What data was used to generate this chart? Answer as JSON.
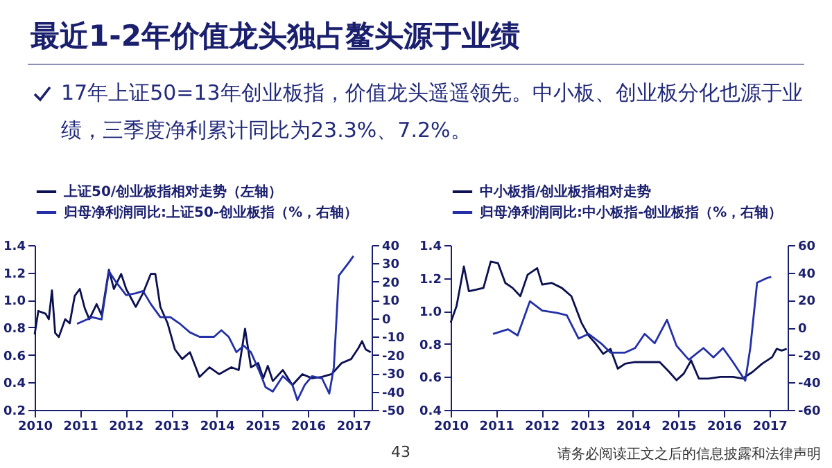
{
  "chart_data": [
    {
      "type": "other",
      "title": "最近1-2年价值龙头独占鳌头源于业绩",
      "subtitle": "17年上证50=13年创业板指，价值龙头遥遥领先。中小板、创业板分化也源于业绩，三季度净利累计同比为23.3%、7.2%。",
      "annotations": [
        "43",
        "请务必阅读正文之后的信息披露和法律声明"
      ]
    },
    {
      "type": "line",
      "legend": "top",
      "line_style": "solid",
      "xlim": [
        2010,
        2017.4
      ],
      "xticks": [
        2010,
        2011,
        2012,
        2013,
        2014,
        2015,
        2016,
        2017
      ],
      "ylim": [
        0.2,
        1.4
      ],
      "yticks": [
        0.2,
        0.4,
        0.6,
        0.8,
        {
          "value": 1,
          "label": "1.0"
        },
        1.2,
        1.4
      ],
      "y2lim": [
        -50,
        40
      ],
      "y2ticks": [
        -50,
        -40,
        -30,
        -20,
        -10,
        0,
        10,
        20,
        30,
        40
      ],
      "series": [
        {
          "name": "上证50/创业板指相对走势（左轴）",
          "color": "#0b1050",
          "x": [
            2010.0,
            2010.08,
            2010.24,
            2010.31,
            2010.38,
            2010.45,
            2010.53,
            2010.67,
            2010.77,
            2010.88,
            2010.99,
            2011.1,
            2011.2,
            2011.36,
            2011.47,
            2011.63,
            2011.74,
            2011.9,
            2012.01,
            2012.22,
            2012.38,
            2012.55,
            2012.65,
            2012.76,
            2012.92,
            2013.08,
            2013.24,
            2013.41,
            2013.62,
            2013.84,
            2014.05,
            2014.32,
            2014.48,
            2014.62,
            2014.75,
            2014.91,
            2015.02,
            2015.12,
            2015.23,
            2015.45,
            2015.66,
            2015.88,
            2016.09,
            2016.31,
            2016.52,
            2016.74,
            2016.95,
            2017.11,
            2017.19,
            2017.27,
            2017.38
          ],
          "values": [
            0.75,
            0.92,
            0.9,
            0.86,
            1.07,
            0.76,
            0.73,
            0.86,
            0.83,
            1.03,
            1.08,
            0.94,
            0.86,
            0.97,
            0.89,
            1.22,
            1.08,
            1.19,
            1.08,
            0.95,
            1.05,
            1.19,
            1.19,
            0.95,
            0.83,
            0.64,
            0.57,
            0.62,
            0.44,
            0.51,
            0.46,
            0.51,
            0.49,
            0.79,
            0.51,
            0.54,
            0.43,
            0.52,
            0.41,
            0.49,
            0.38,
            0.46,
            0.43,
            0.44,
            0.46,
            0.54,
            0.57,
            0.65,
            0.7,
            0.64,
            0.62
          ]
        },
        {
          "name": "归母净利润同比:上证50-创业板指（%，右轴）",
          "color": "#2330a8",
          "axis": "y2",
          "x": [
            2010.93,
            2011.26,
            2011.47,
            2011.63,
            2011.79,
            2012.01,
            2012.22,
            2012.38,
            2012.55,
            2012.76,
            2012.98,
            2013.19,
            2013.41,
            2013.62,
            2013.94,
            2014.1,
            2014.26,
            2014.43,
            2014.59,
            2014.75,
            2014.96,
            2015.07,
            2015.23,
            2015.45,
            2015.66,
            2015.77,
            2015.93,
            2016.09,
            2016.31,
            2016.47,
            2016.57,
            2016.68,
            2016.9,
            2017.0
          ],
          "values": [
            -3,
            0.6,
            -0.6,
            25.7,
            19.7,
            12.6,
            13.7,
            14.9,
            7.8,
            0.6,
            0.6,
            -3,
            -7.7,
            -10.1,
            -10.1,
            -6.5,
            -10.1,
            -18.5,
            -14.9,
            -18.5,
            -30.4,
            -37.6,
            -40,
            -31.6,
            -36.4,
            -44.7,
            -36.4,
            -31.6,
            -32.8,
            -41.1,
            -26.8,
            23.3,
            30.5,
            34
          ]
        }
      ]
    },
    {
      "type": "line",
      "legend": "top",
      "line_style": "solid",
      "xlim": [
        2010,
        2017.4
      ],
      "xticks": [
        2010,
        2011,
        2012,
        2013,
        2014,
        2015,
        2016,
        2017
      ],
      "ylim": [
        0.4,
        1.4
      ],
      "yticks": [
        0.4,
        0.6,
        0.8,
        {
          "value": 1,
          "label": "1.0"
        },
        1.2,
        1.4
      ],
      "y2lim": [
        -60,
        60
      ],
      "y2ticks": [
        -60,
        -40,
        -20,
        0,
        20,
        40,
        60
      ],
      "series": [
        {
          "name": "中小板指/创业板指相对走势",
          "color": "#0b1050",
          "x": [
            2010.0,
            2010.13,
            2010.29,
            2010.4,
            2010.56,
            2010.72,
            2010.88,
            2011.04,
            2011.2,
            2011.36,
            2011.53,
            2011.69,
            2011.9,
            2012.01,
            2012.22,
            2012.44,
            2012.65,
            2012.87,
            2013.03,
            2013.19,
            2013.35,
            2013.51,
            2013.67,
            2013.83,
            2014.05,
            2014.37,
            2014.59,
            2014.8,
            2014.96,
            2015.12,
            2015.28,
            2015.45,
            2015.66,
            2015.93,
            2016.2,
            2016.41,
            2016.63,
            2016.84,
            2017.06,
            2017.16,
            2017.27,
            2017.38
          ],
          "values": [
            0.93,
            1.03,
            1.27,
            1.12,
            1.13,
            1.14,
            1.3,
            1.29,
            1.17,
            1.14,
            1.09,
            1.22,
            1.26,
            1.16,
            1.17,
            1.14,
            1.09,
            0.93,
            0.85,
            0.8,
            0.74,
            0.77,
            0.65,
            0.68,
            0.69,
            0.69,
            0.69,
            0.63,
            0.58,
            0.62,
            0.7,
            0.59,
            0.59,
            0.6,
            0.6,
            0.59,
            0.63,
            0.68,
            0.72,
            0.77,
            0.76,
            0.77
          ]
        },
        {
          "name": "归母净利润同比:中小板指-创业板指（%，右轴）",
          "color": "#2330a8",
          "axis": "y2",
          "x": [
            2010.93,
            2011.26,
            2011.47,
            2011.74,
            2012.01,
            2012.33,
            2012.55,
            2012.81,
            2013.03,
            2013.3,
            2013.51,
            2013.83,
            2014.05,
            2014.26,
            2014.48,
            2014.75,
            2014.96,
            2015.23,
            2015.55,
            2015.77,
            2015.98,
            2016.2,
            2016.47,
            2016.58,
            2016.73,
            2016.95,
            2017.04
          ],
          "values": [
            -4.7,
            -1.3,
            -5.8,
            19.1,
            12.3,
            10.6,
            8.9,
            -8.1,
            -4.7,
            -11.5,
            -18.3,
            -18.3,
            -15,
            -4.7,
            -11.5,
            5.5,
            -13.3,
            -23.5,
            -15,
            -21.8,
            -15,
            -25.2,
            -38.8,
            -15,
            32.7,
            36.1,
            36.8
          ]
        }
      ]
    }
  ]
}
